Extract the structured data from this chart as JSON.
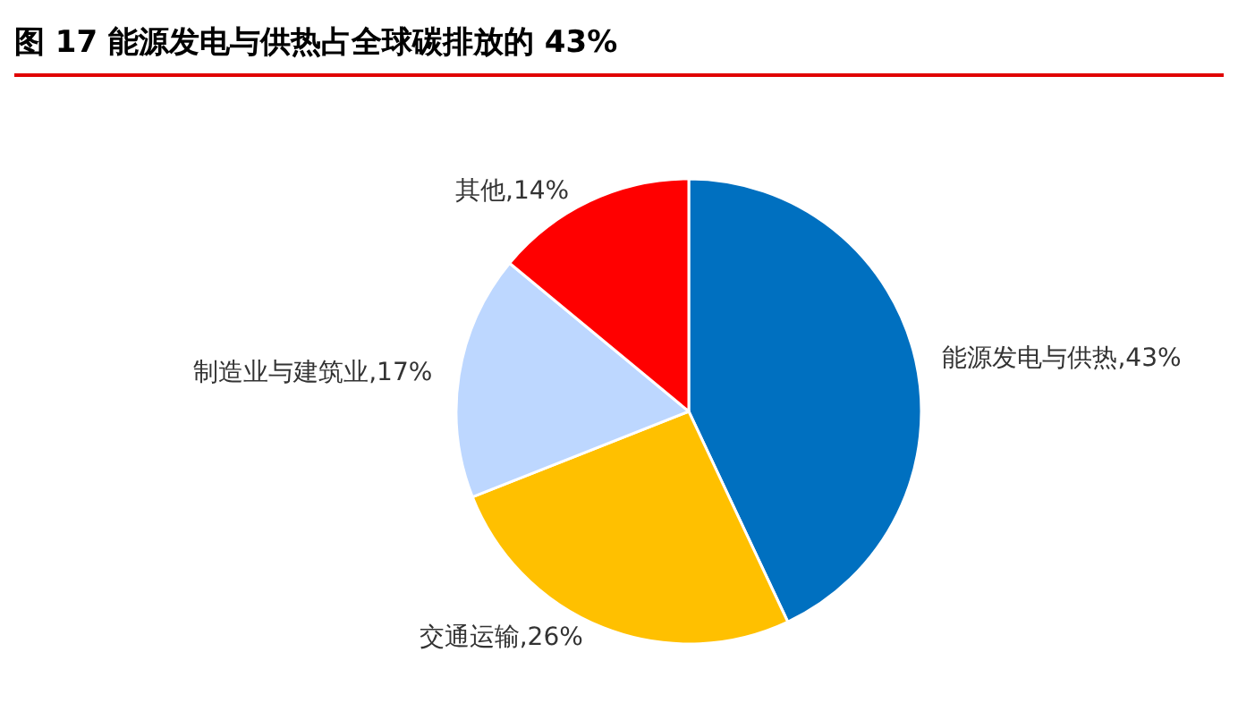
{
  "chart_data": {
    "type": "pie",
    "title": "图 17  能源发电与供热占全球碳排放的 43%",
    "categories": [
      "能源发电与供热",
      "交通运输",
      "制造业与建筑业",
      "其他"
    ],
    "values": [
      43,
      26,
      17,
      14
    ],
    "colors": [
      "#0070c0",
      "#ffc000",
      "#bdd7ff",
      "#ff0000"
    ],
    "value_labels": [
      ",43%",
      ",26%",
      ",17%",
      ",14%"
    ]
  }
}
